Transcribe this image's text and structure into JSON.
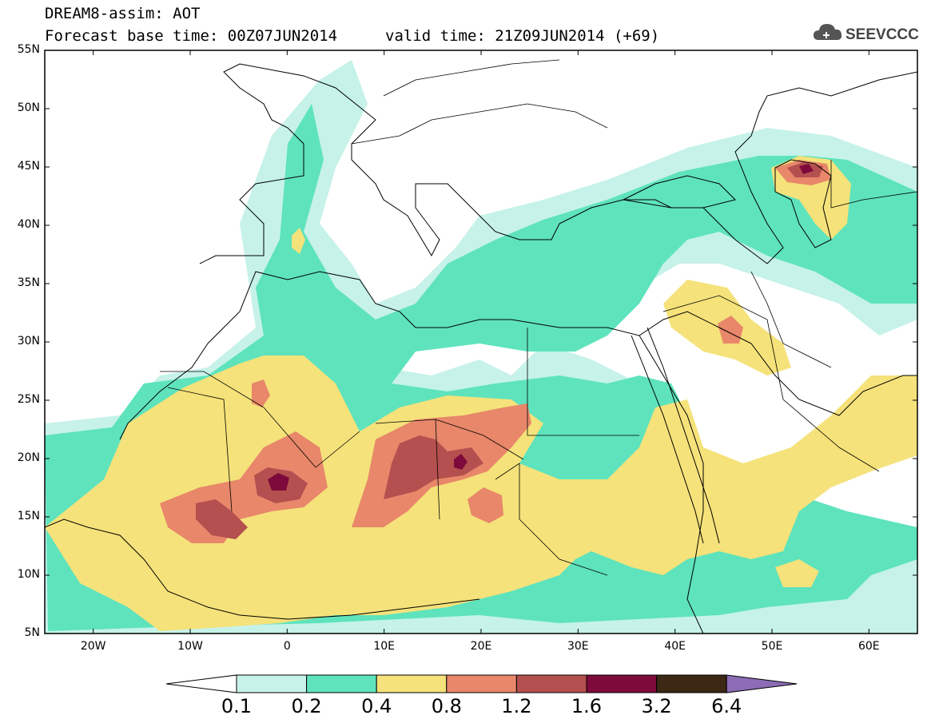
{
  "header": {
    "title_line1": "DREAM8-assim: AOT",
    "title_line2": "Forecast base time: 00Z07JUN2014",
    "valid_time": "valid time: 21Z09JUN2014 (+69)",
    "logo_text": "SEEVCCC",
    "logo_icon": "cloud-icon"
  },
  "map": {
    "lat_labels": [
      "55N",
      "50N",
      "45N",
      "40N",
      "35N",
      "30N",
      "25N",
      "20N",
      "15N",
      "10N",
      "5N"
    ],
    "lat_values": [
      55,
      50,
      45,
      40,
      35,
      30,
      25,
      20,
      15,
      10,
      5
    ],
    "lon_labels": [
      "20W",
      "10W",
      "0",
      "10E",
      "20E",
      "30E",
      "40E",
      "50E",
      "60E"
    ],
    "lon_values": [
      -20,
      -10,
      0,
      10,
      20,
      30,
      40,
      50,
      60
    ],
    "lon_range": [
      -25,
      65
    ],
    "lat_range": [
      5,
      55
    ]
  },
  "colorbar": {
    "labels": [
      "0.1",
      "0.2",
      "0.4",
      "0.8",
      "1.2",
      "1.6",
      "3.2",
      "6.4"
    ],
    "colors": [
      "#ffffff",
      "#c6f2e9",
      "#5ee3bd",
      "#f5e27a",
      "#e8876a",
      "#b4504f",
      "#7e0a3b",
      "#3c2814",
      "#8c6cb4"
    ]
  },
  "colors": {
    "c1": "#c6f2e9",
    "c2": "#5ee3bd",
    "c3": "#f5e27a",
    "c4": "#e8876a",
    "c5": "#b4504f",
    "c6": "#7e0a3b"
  }
}
